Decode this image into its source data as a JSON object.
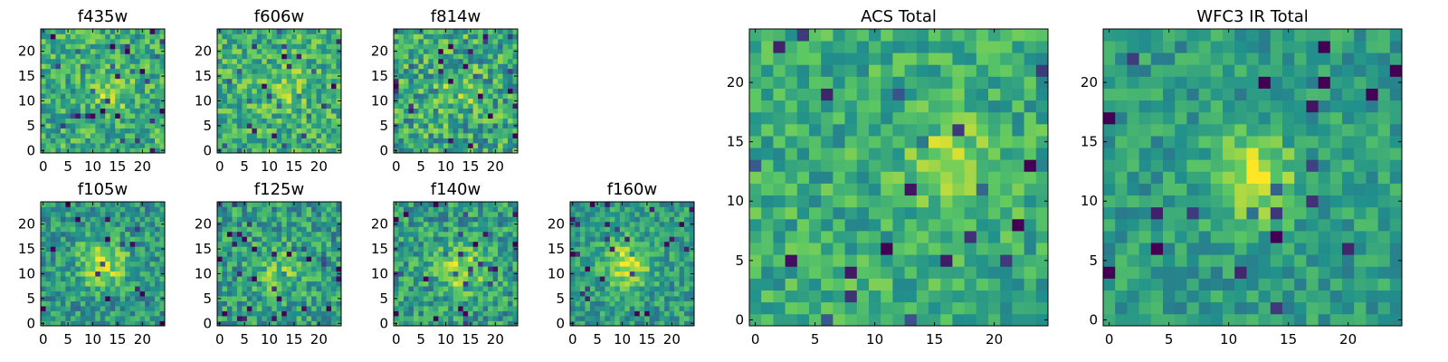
{
  "figure": {
    "colormap": "viridis",
    "colormap_stops": [
      "#440154",
      "#3b528b",
      "#21918c",
      "#5ec962",
      "#fde725"
    ],
    "background": "#ffffff"
  },
  "chart_data": [
    {
      "type": "heatmap",
      "title": "f435w",
      "size": 25,
      "xlim": [
        0,
        24
      ],
      "ylim": [
        0,
        24
      ],
      "xticks": [
        0,
        5,
        10,
        15,
        20
      ],
      "yticks": [
        0,
        5,
        10,
        15,
        20
      ],
      "value_range": [
        0,
        1
      ],
      "peak": {
        "x": 14,
        "y": 12,
        "sigma": 2.5,
        "amplitude": 0.25
      },
      "base": 0.62,
      "noise": 0.22,
      "seed": 11
    },
    {
      "type": "heatmap",
      "title": "f606w",
      "size": 25,
      "xlim": [
        0,
        24
      ],
      "ylim": [
        0,
        24
      ],
      "xticks": [
        0,
        5,
        10,
        15,
        20
      ],
      "yticks": [
        0,
        5,
        10,
        15,
        20
      ],
      "value_range": [
        0,
        1
      ],
      "peak": {
        "x": 14,
        "y": 13,
        "sigma": 3,
        "amplitude": 0.15
      },
      "base": 0.64,
      "noise": 0.22,
      "seed": 23
    },
    {
      "type": "heatmap",
      "title": "f814w",
      "size": 25,
      "xlim": [
        0,
        24
      ],
      "ylim": [
        0,
        24
      ],
      "xticks": [
        0,
        5,
        10,
        15,
        20
      ],
      "yticks": [
        0,
        5,
        10,
        15,
        20
      ],
      "value_range": [
        0,
        1
      ],
      "peak": {
        "x": 13,
        "y": 12,
        "sigma": 3,
        "amplitude": 0.15
      },
      "base": 0.6,
      "noise": 0.26,
      "seed": 37
    },
    {
      "type": "heatmap",
      "title": "f105w",
      "size": 25,
      "xlim": [
        0,
        24
      ],
      "ylim": [
        0,
        24
      ],
      "xticks": [
        0,
        5,
        10,
        15,
        20
      ],
      "yticks": [
        0,
        5,
        10,
        15,
        20
      ],
      "value_range": [
        0,
        1
      ],
      "peak": {
        "x": 12,
        "y": 12,
        "sigma": 3.5,
        "amplitude": 0.35
      },
      "base": 0.52,
      "noise": 0.2,
      "seed": 41
    },
    {
      "type": "heatmap",
      "title": "f125w",
      "size": 25,
      "xlim": [
        0,
        24
      ],
      "ylim": [
        0,
        24
      ],
      "xticks": [
        0,
        5,
        10,
        15,
        20
      ],
      "yticks": [
        0,
        5,
        10,
        15,
        20
      ],
      "value_range": [
        0,
        1
      ],
      "peak": {
        "x": 12,
        "y": 11,
        "sigma": 3.5,
        "amplitude": 0.2
      },
      "base": 0.55,
      "noise": 0.22,
      "seed": 53
    },
    {
      "type": "heatmap",
      "title": "f140w",
      "size": 25,
      "xlim": [
        0,
        24
      ],
      "ylim": [
        0,
        24
      ],
      "xticks": [
        0,
        5,
        10,
        15,
        20
      ],
      "yticks": [
        0,
        5,
        10,
        15,
        20
      ],
      "value_range": [
        0,
        1
      ],
      "peak": {
        "x": 13,
        "y": 11,
        "sigma": 3.5,
        "amplitude": 0.3
      },
      "base": 0.55,
      "noise": 0.22,
      "seed": 67
    },
    {
      "type": "heatmap",
      "title": "f160w",
      "size": 25,
      "xlim": [
        0,
        24
      ],
      "ylim": [
        0,
        24
      ],
      "xticks": [
        0,
        5,
        10,
        15,
        20
      ],
      "yticks": [
        0,
        5,
        10,
        15,
        20
      ],
      "value_range": [
        0,
        1
      ],
      "peak": {
        "x": 11,
        "y": 12,
        "sigma": 3,
        "amplitude": 0.4
      },
      "base": 0.55,
      "noise": 0.18,
      "seed": 79
    },
    {
      "type": "heatmap",
      "title": "ACS Total",
      "size": 25,
      "xlim": [
        0,
        24
      ],
      "ylim": [
        0,
        24
      ],
      "xticks": [
        0,
        5,
        10,
        15,
        20
      ],
      "yticks": [
        0,
        5,
        10,
        15,
        20
      ],
      "value_range": [
        0,
        1
      ],
      "peak": {
        "x": 16,
        "y": 13,
        "sigma": 2.5,
        "amplitude": 0.25
      },
      "base": 0.62,
      "noise": 0.18,
      "seed": 97
    },
    {
      "type": "heatmap",
      "title": "WFC3 IR Total",
      "size": 25,
      "xlim": [
        0,
        24
      ],
      "ylim": [
        0,
        24
      ],
      "xticks": [
        0,
        5,
        10,
        15,
        20
      ],
      "yticks": [
        0,
        5,
        10,
        15,
        20
      ],
      "value_range": [
        0,
        1
      ],
      "peak": {
        "x": 12,
        "y": 12,
        "sigma": 2.5,
        "amplitude": 0.4
      },
      "base": 0.55,
      "noise": 0.15,
      "seed": 113
    }
  ]
}
